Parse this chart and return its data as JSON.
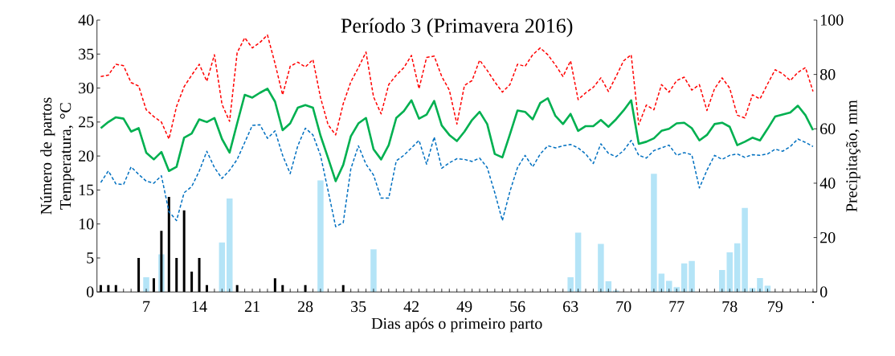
{
  "chart_data": {
    "type": "line",
    "title": "Período 3 (Primavera 2016)",
    "xlabel": "Dias após o primeiro parto",
    "ylabel": "Número de partos Temperatura, °C",
    "y2label": "Precipitação, mm",
    "categories": [
      null,
      null,
      null,
      null,
      null,
      null,
      "7",
      null,
      null,
      null,
      null,
      null,
      null,
      "14",
      null,
      null,
      null,
      null,
      null,
      null,
      "21",
      null,
      null,
      null,
      null,
      null,
      null,
      "28",
      null,
      null,
      null,
      null,
      null,
      null,
      "35",
      null,
      null,
      null,
      null,
      null,
      null,
      "42",
      null,
      null,
      null,
      null,
      null,
      null,
      "49",
      null,
      null,
      null,
      null,
      null,
      null,
      "56",
      null,
      null,
      null,
      null,
      null,
      null,
      "63",
      null,
      null,
      null,
      null,
      null,
      null,
      "70",
      null,
      null,
      null,
      null,
      null,
      null,
      "77",
      null,
      null,
      null,
      null,
      null,
      null,
      "78",
      null,
      null,
      null,
      null,
      null,
      "79",
      null,
      null,
      null,
      null,
      "."
    ],
    "series": [
      {
        "type": "bar",
        "axis": "y2",
        "color": "#b4e4f7",
        "values": [
          0,
          0,
          0,
          0,
          0,
          0,
          5.4,
          0,
          13.8,
          0,
          0,
          0,
          0,
          0,
          null,
          0,
          18.2,
          34.4,
          0,
          0,
          0,
          0,
          0,
          null,
          0,
          0,
          0,
          0,
          0,
          41,
          null,
          0,
          0,
          0,
          0,
          0,
          15.7,
          0,
          0,
          0,
          0,
          0,
          0,
          0,
          0,
          0,
          0,
          0,
          0,
          0,
          0,
          0,
          0,
          0,
          0,
          0,
          0,
          0,
          0,
          0,
          null,
          0,
          5.4,
          21.8,
          0,
          0,
          17.7,
          3.9,
          0.5,
          0,
          0,
          0,
          0,
          43.5,
          6.7,
          4.1,
          1.8,
          10.5,
          11.4,
          null,
          0,
          0,
          8.1,
          14.6,
          17.9,
          30.9,
          1.4,
          5.1,
          2.3,
          0,
          0,
          0,
          0,
          0,
          0
        ]
      },
      {
        "type": "bar",
        "color": "#000000",
        "values": [
          1,
          1,
          1,
          0,
          0,
          5,
          0,
          2,
          9,
          14,
          5,
          12,
          3,
          5,
          1,
          0,
          0,
          0,
          1,
          0,
          0,
          0,
          0,
          2,
          1,
          0,
          0,
          1,
          0,
          0,
          0,
          0,
          1,
          0,
          0,
          0,
          0,
          0,
          0,
          0,
          0,
          0,
          0,
          0,
          0,
          0,
          0,
          0,
          0,
          0,
          0,
          0,
          0,
          0,
          0,
          0,
          0,
          0,
          0,
          0,
          0,
          0,
          0,
          0,
          0,
          0,
          0,
          0,
          0,
          0,
          0,
          0,
          0,
          0,
          0,
          0,
          0,
          0,
          0,
          0,
          0,
          0,
          0,
          0,
          0,
          0,
          0,
          0,
          0,
          0,
          0,
          0,
          0,
          0,
          0
        ]
      },
      {
        "color": "#ff0000",
        "line_style": "dashed",
        "values": [
          31.7,
          31.9,
          33.5,
          33.3,
          30.8,
          30.3,
          26.8,
          25.8,
          25.0,
          22.5,
          27.3,
          30.2,
          31.9,
          33.5,
          31.0,
          34.9,
          27.6,
          25.1,
          35.2,
          37.4,
          35.9,
          36.7,
          37.8,
          33.6,
          29.0,
          33.2,
          33.8,
          33.1,
          34.2,
          28.6,
          24.6,
          23.1,
          27.7,
          30.9,
          33.0,
          35.3,
          28.7,
          26.2,
          30.5,
          31.9,
          33.0,
          34.8,
          29.9,
          34.5,
          34.7,
          31.7,
          29.7,
          24.7,
          30.4,
          31.1,
          34.1,
          32.6,
          30.9,
          29.4,
          30.5,
          33.5,
          33.2,
          34.9,
          35.9,
          34.9,
          33.4,
          31.7,
          34.0,
          28.3,
          29.3,
          30.1,
          31.5,
          29.5,
          31.7,
          34.0,
          34.9,
          24.6,
          27.5,
          26.8,
          30.5,
          29.4,
          31.1,
          31.6,
          29.7,
          30.5,
          26.7,
          29.9,
          31.5,
          30.0,
          26.0,
          25.6,
          29.0,
          28.4,
          30.6,
          32.7,
          32.1,
          31.1,
          32.3,
          33.0,
          29.5
        ]
      },
      {
        "color": "#00b050",
        "line_style": "solid",
        "values": [
          24.1,
          25.0,
          25.7,
          25.5,
          23.6,
          24.1,
          20.5,
          19.5,
          20.6,
          17.8,
          18.4,
          22.7,
          23.3,
          25.4,
          25.0,
          25.6,
          22.5,
          20.5,
          24.8,
          29.0,
          28.6,
          29.3,
          29.9,
          28.0,
          23.8,
          24.8,
          27.1,
          27.5,
          27.1,
          23.0,
          19.7,
          16.3,
          18.7,
          22.9,
          24.8,
          25.6,
          21.0,
          19.5,
          21.6,
          25.6,
          26.6,
          28.2,
          25.5,
          26.1,
          28.1,
          24.5,
          23.1,
          22.2,
          23.6,
          25.3,
          26.5,
          24.7,
          20.3,
          19.8,
          23.2,
          26.7,
          26.5,
          25.4,
          27.8,
          28.5,
          25.9,
          24.7,
          26.2,
          23.7,
          24.4,
          24.4,
          25.3,
          24.3,
          25.4,
          26.7,
          28.2,
          21.8,
          22.1,
          22.6,
          23.7,
          24.0,
          24.8,
          24.9,
          24.1,
          22.3,
          23.1,
          24.7,
          24.9,
          24.3,
          21.6,
          22.1,
          22.7,
          22.3,
          24.0,
          25.8,
          26.1,
          26.4,
          27.4,
          26.0,
          23.8
        ]
      },
      {
        "color": "#0070c0",
        "line_style": "dashed",
        "values": [
          16.1,
          17.8,
          15.9,
          15.8,
          18.4,
          17.3,
          16.3,
          16.0,
          17.1,
          11.8,
          10.5,
          14.6,
          15.5,
          17.8,
          20.7,
          18.3,
          16.7,
          17.9,
          19.5,
          22.0,
          24.5,
          24.6,
          22.6,
          23.7,
          20.1,
          17.4,
          21.5,
          24.1,
          23.1,
          20.1,
          14.9,
          9.6,
          10.2,
          18.1,
          21.5,
          18.8,
          17.2,
          13.8,
          13.8,
          19.3,
          20.1,
          21.2,
          22.3,
          18.8,
          22.8,
          18.2,
          19.0,
          19.6,
          19.5,
          19.2,
          19.7,
          18.3,
          14.6,
          10.5,
          14.8,
          18.3,
          20.1,
          18.4,
          20.3,
          21.5,
          21.2,
          21.5,
          21.7,
          21.2,
          20.3,
          18.9,
          21.8,
          20.4,
          19.9,
          20.8,
          22.3,
          20.1,
          19.7,
          20.8,
          21.2,
          21.6,
          20.1,
          20.5,
          20.2,
          15.3,
          17.9,
          20.1,
          19.5,
          20.1,
          20.3,
          19.8,
          20.2,
          20.1,
          20.3,
          21.0,
          20.7,
          21.4,
          22.5,
          22.0,
          21.4
        ]
      }
    ],
    "ylim": [
      0,
      40
    ],
    "yticks": [
      0,
      5,
      10,
      15,
      20,
      25,
      30,
      35,
      40
    ],
    "y2lim": [
      0,
      100
    ],
    "y2ticks": [
      0,
      20,
      40,
      60,
      80,
      100
    ]
  }
}
